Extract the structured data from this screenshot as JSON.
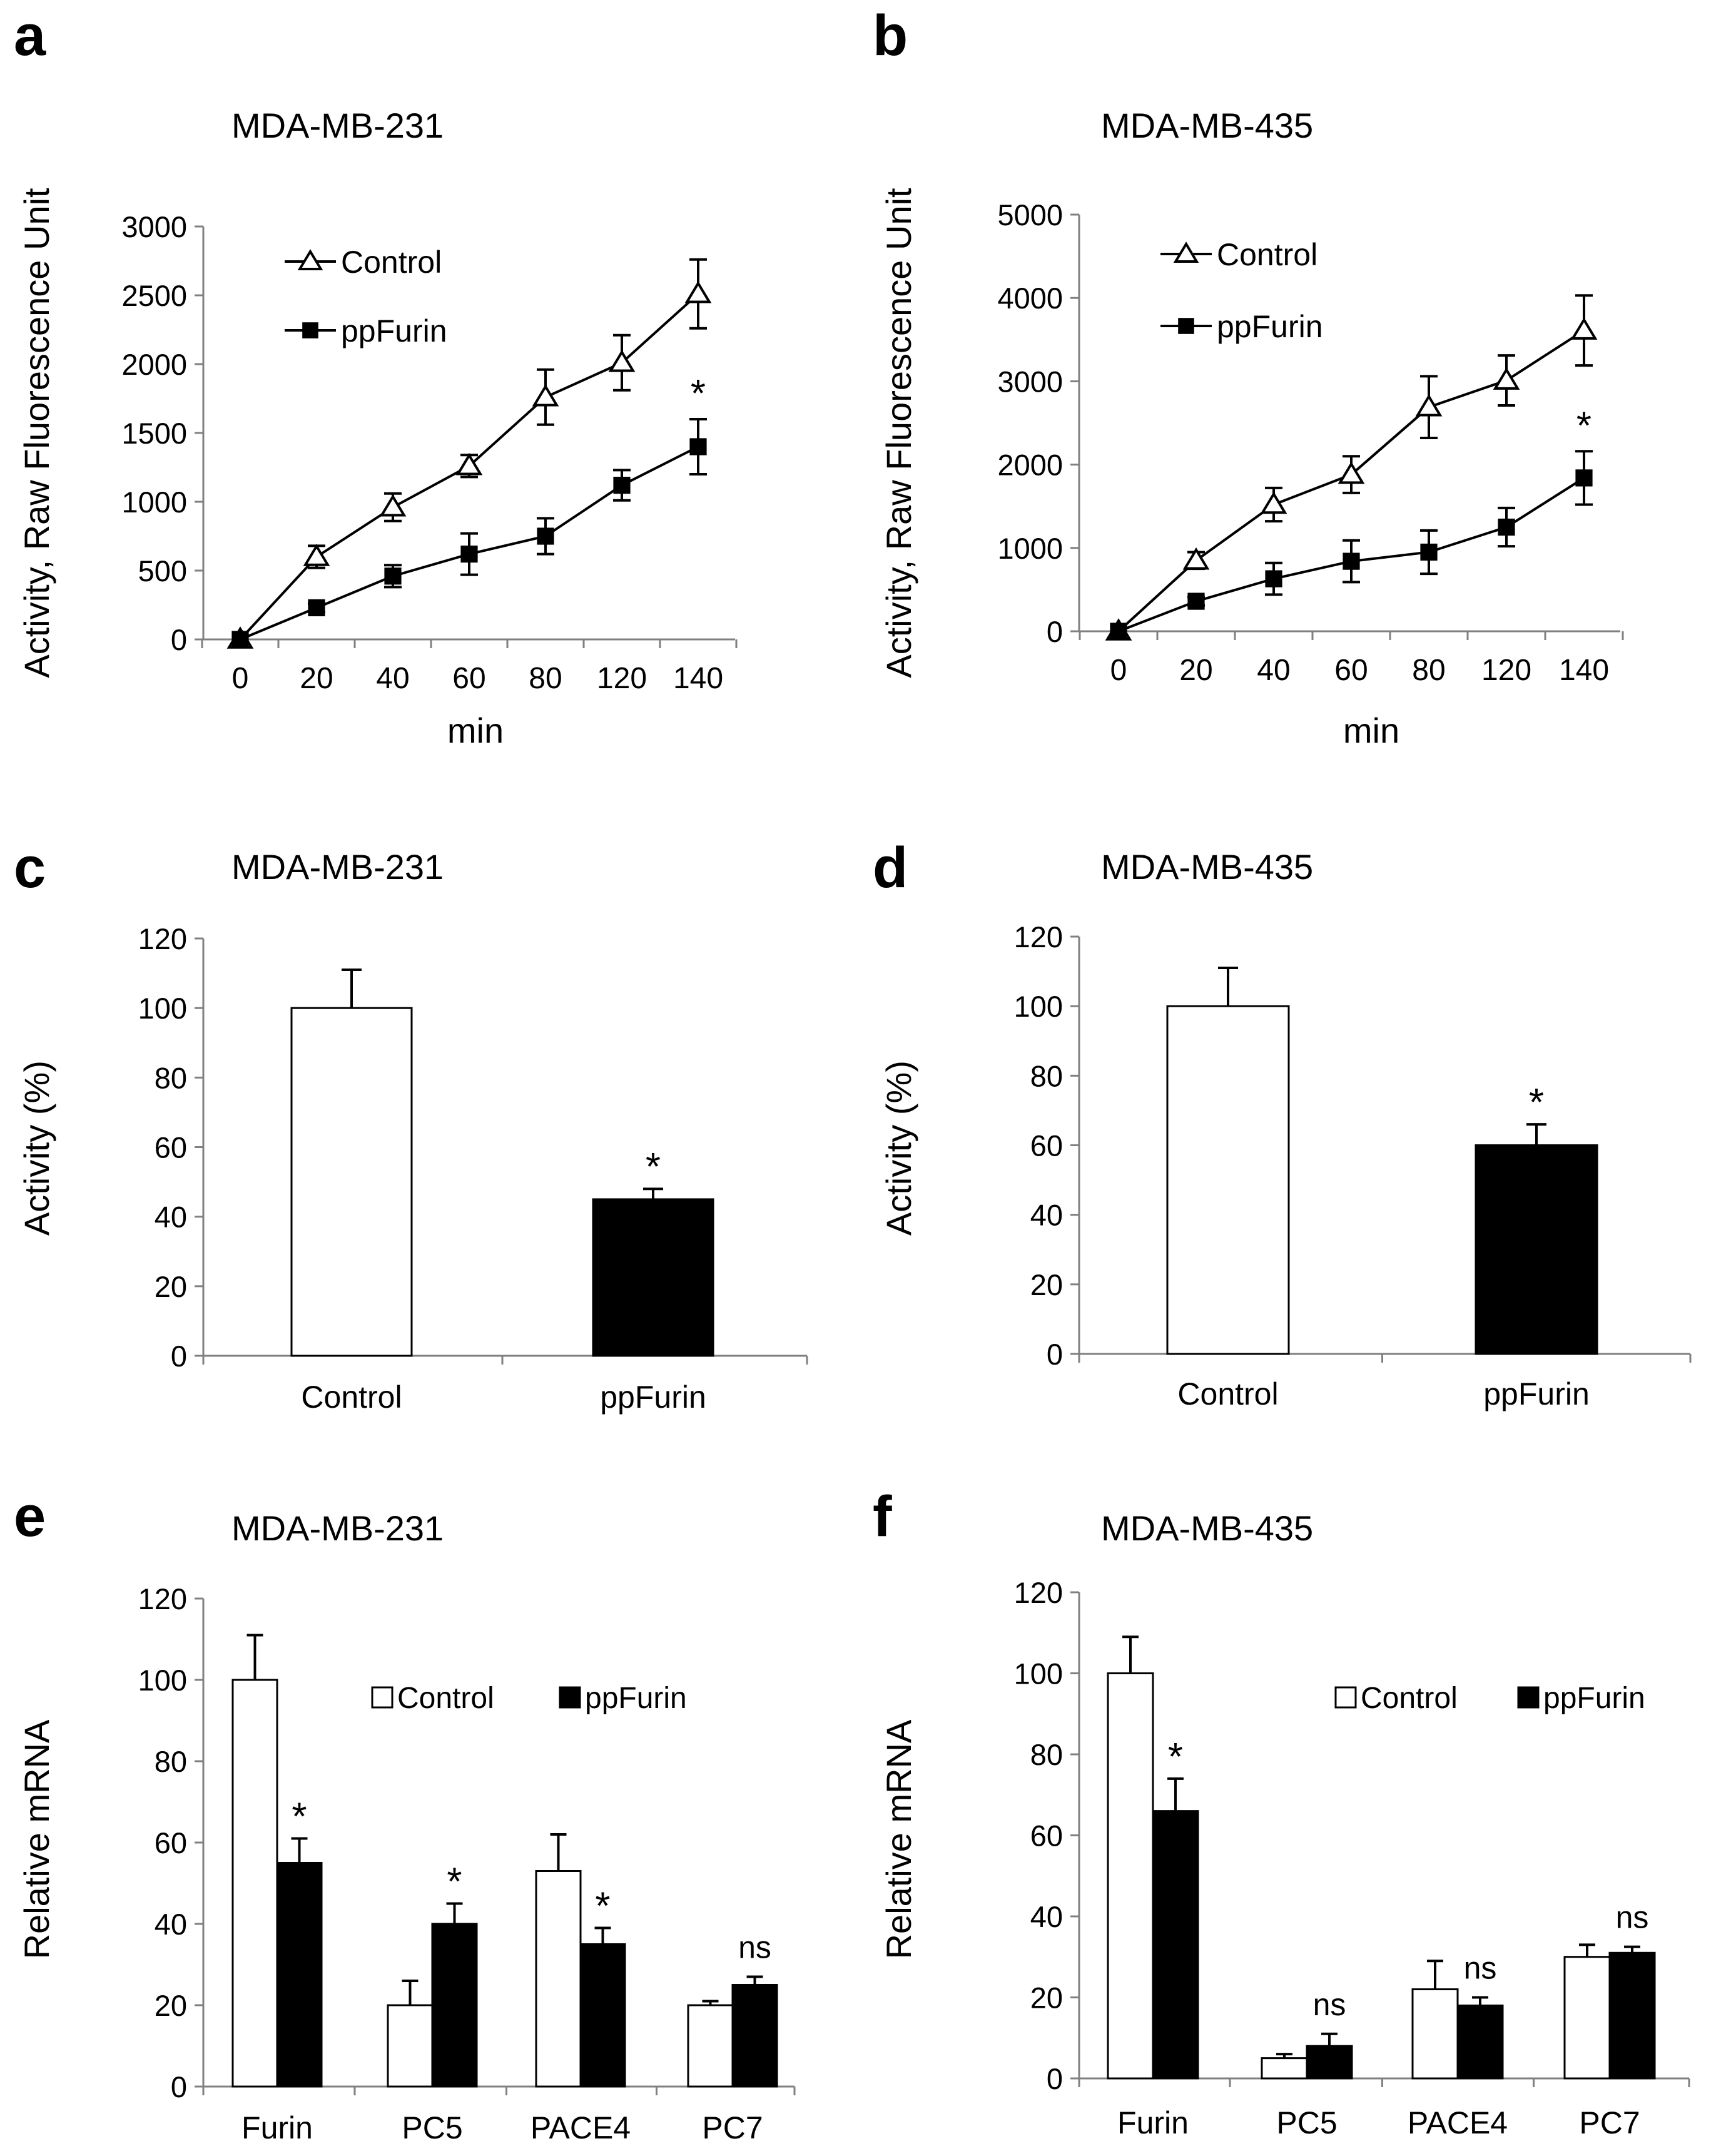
{
  "colors": {
    "ink": "#000000",
    "open": "#ffffff",
    "filled": "#000000"
  },
  "chart_data": [
    {
      "panel": "a",
      "type": "line",
      "title": "MDA-MB-231",
      "xlabel": "min",
      "ylabel": "Activity, Raw Fluorescence Unit",
      "categories": [
        "0",
        "20",
        "40",
        "60",
        "80",
        "120",
        "140"
      ],
      "ylim": [
        0,
        3000
      ],
      "yticks": [
        "0",
        "500",
        "1000",
        "1500",
        "2000",
        "2500",
        "3000"
      ],
      "series": [
        {
          "name": "Control",
          "marker": "open-triangle",
          "values": [
            0,
            600,
            960,
            1260,
            1760,
            2010,
            2510
          ],
          "errors": [
            0,
            80,
            100,
            80,
            200,
            200,
            250
          ]
        },
        {
          "name": "ppFurin",
          "marker": "filled-square",
          "values": [
            0,
            230,
            460,
            620,
            750,
            1120,
            1400
          ],
          "errors": [
            0,
            30,
            80,
            150,
            130,
            110,
            200
          ]
        }
      ],
      "annotations": [
        {
          "series": 1,
          "index": 6,
          "text": "*"
        }
      ]
    },
    {
      "panel": "b",
      "type": "line",
      "title": "MDA-MB-435",
      "xlabel": "min",
      "ylabel": "Activity, Raw Fluorescence Unit",
      "categories": [
        "0",
        "20",
        "40",
        "60",
        "80",
        "120",
        "140"
      ],
      "ylim": [
        0,
        5000
      ],
      "yticks": [
        "0",
        "1000",
        "2000",
        "3000",
        "4000",
        "5000"
      ],
      "series": [
        {
          "name": "Control",
          "marker": "open-triangle",
          "values": [
            0,
            850,
            1520,
            1880,
            2690,
            3010,
            3610
          ],
          "errors": [
            0,
            100,
            200,
            220,
            370,
            300,
            420
          ]
        },
        {
          "name": "ppFurin",
          "marker": "filled-square",
          "values": [
            0,
            360,
            630,
            840,
            950,
            1250,
            1840
          ],
          "errors": [
            0,
            50,
            190,
            250,
            260,
            230,
            320
          ]
        }
      ],
      "annotations": [
        {
          "series": 1,
          "index": 6,
          "text": "*"
        }
      ]
    },
    {
      "panel": "c",
      "type": "bar",
      "title": "MDA-MB-231",
      "xlabel": "",
      "ylabel": "Activity (%)",
      "categories": [
        "Control",
        "ppFurin"
      ],
      "ylim": [
        0,
        120
      ],
      "yticks": [
        "0",
        "20",
        "40",
        "60",
        "80",
        "100",
        "120"
      ],
      "series": [
        {
          "name": "Activity",
          "values": [
            100,
            45
          ],
          "errors": [
            11,
            3
          ],
          "fills": [
            "open",
            "filled"
          ]
        }
      ],
      "annotations": [
        {
          "series": 0,
          "index": 1,
          "text": "*"
        }
      ]
    },
    {
      "panel": "d",
      "type": "bar",
      "title": "MDA-MB-435",
      "xlabel": "",
      "ylabel": "Activity (%)",
      "categories": [
        "Control",
        "ppFurin"
      ],
      "ylim": [
        0,
        120
      ],
      "yticks": [
        "0",
        "20",
        "40",
        "60",
        "80",
        "100",
        "120"
      ],
      "series": [
        {
          "name": "Activity",
          "values": [
            100,
            60
          ],
          "errors": [
            11,
            6
          ],
          "fills": [
            "open",
            "filled"
          ]
        }
      ],
      "annotations": [
        {
          "series": 0,
          "index": 1,
          "text": "*"
        }
      ]
    },
    {
      "panel": "e",
      "type": "bar",
      "title": "MDA-MB-231",
      "xlabel": "",
      "ylabel": "Relative mRNA",
      "categories": [
        "Furin",
        "PC5",
        "PACE4",
        "PC7"
      ],
      "ylim": [
        0,
        120
      ],
      "yticks": [
        "0",
        "20",
        "40",
        "60",
        "80",
        "100",
        "120"
      ],
      "series": [
        {
          "name": "Control",
          "values": [
            100,
            20,
            53,
            20
          ],
          "errors": [
            11,
            6,
            9,
            1
          ],
          "fill": "open"
        },
        {
          "name": "ppFurin",
          "values": [
            55,
            40,
            35,
            25
          ],
          "errors": [
            6,
            5,
            4,
            2
          ],
          "fill": "filled"
        }
      ],
      "annotations": [
        {
          "series": 1,
          "index": 0,
          "text": "*"
        },
        {
          "series": 1,
          "index": 1,
          "text": "*"
        },
        {
          "series": 1,
          "index": 2,
          "text": "*"
        },
        {
          "series": 1,
          "index": 3,
          "text": "ns"
        }
      ]
    },
    {
      "panel": "f",
      "type": "bar",
      "title": "MDA-MB-435",
      "xlabel": "",
      "ylabel": "Relative mRNA",
      "categories": [
        "Furin",
        "PC5",
        "PACE4",
        "PC7"
      ],
      "ylim": [
        0,
        120
      ],
      "yticks": [
        "0",
        "20",
        "40",
        "60",
        "80",
        "100",
        "120"
      ],
      "series": [
        {
          "name": "Control",
          "values": [
            100,
            5,
            22,
            30
          ],
          "errors": [
            9,
            1,
            7,
            3
          ],
          "fill": "open"
        },
        {
          "name": "ppFurin",
          "values": [
            66,
            8,
            18,
            31
          ],
          "errors": [
            8,
            3,
            2,
            1.5
          ],
          "fill": "filled"
        }
      ],
      "annotations": [
        {
          "series": 1,
          "index": 0,
          "text": "*"
        },
        {
          "series": 1,
          "index": 1,
          "text": "ns"
        },
        {
          "series": 1,
          "index": 2,
          "text": "ns"
        },
        {
          "series": 1,
          "index": 3,
          "text": "ns"
        }
      ]
    }
  ]
}
